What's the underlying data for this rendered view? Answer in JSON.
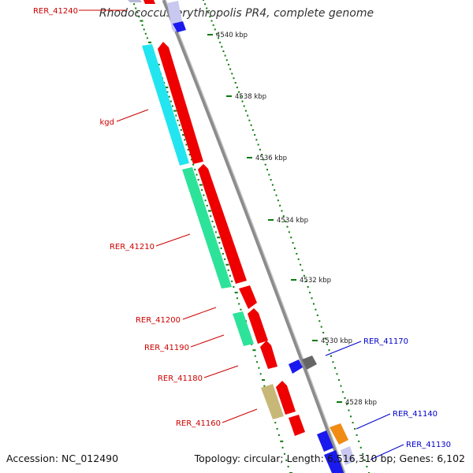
{
  "title": "Rhodococcus erythropolis PR4, complete genome",
  "footer": {
    "accession": "Accession: NC_012490",
    "summary": "Topology: circular; Length: 6,516,310 bp; Genes: 6,102"
  },
  "scale_ticks": [
    {
      "label": "4540 kbp",
      "kbp": 4540
    },
    {
      "label": "4538 kbp",
      "kbp": 4538
    },
    {
      "label": "4536 kbp",
      "kbp": 4536
    },
    {
      "label": "4534 kbp",
      "kbp": 4534
    },
    {
      "label": "4532 kbp",
      "kbp": 4532
    },
    {
      "label": "4530 kbp",
      "kbp": 4530
    },
    {
      "label": "4528 kbp",
      "kbp": 4528
    }
  ],
  "gene_labels": [
    {
      "text": "RER_41240",
      "strand": "reverse",
      "color": "#cc0000"
    },
    {
      "text": "kgd",
      "strand": "reverse",
      "color": "#cc0000"
    },
    {
      "text": "RER_41210",
      "strand": "reverse",
      "color": "#cc0000"
    },
    {
      "text": "RER_41200",
      "strand": "reverse",
      "color": "#cc0000"
    },
    {
      "text": "RER_41190",
      "strand": "reverse",
      "color": "#cc0000"
    },
    {
      "text": "RER_41180",
      "strand": "reverse",
      "color": "#cc0000"
    },
    {
      "text": "RER_41160",
      "strand": "reverse",
      "color": "#cc0000"
    },
    {
      "text": "RER_41170",
      "strand": "forward",
      "color": "#0000cc"
    },
    {
      "text": "RER_41140",
      "strand": "forward",
      "color": "#0000cc"
    },
    {
      "text": "RER_41130",
      "strand": "forward",
      "color": "#0000cc"
    }
  ],
  "colors": {
    "backbone": "#8c8c8c",
    "gene_red": "#ee0000",
    "gene_cyan": "#22e5f0",
    "gene_green": "#2de39a",
    "gene_khaki": "#c8b878",
    "gene_blue": "#1a1aee",
    "gene_gray": "#666666",
    "gene_orange": "#f08c14",
    "gene_lavender": "#c8c8f0",
    "tick_green": "#0a7a0a",
    "label_red": "#cc0000",
    "label_blue": "#0000cc"
  }
}
